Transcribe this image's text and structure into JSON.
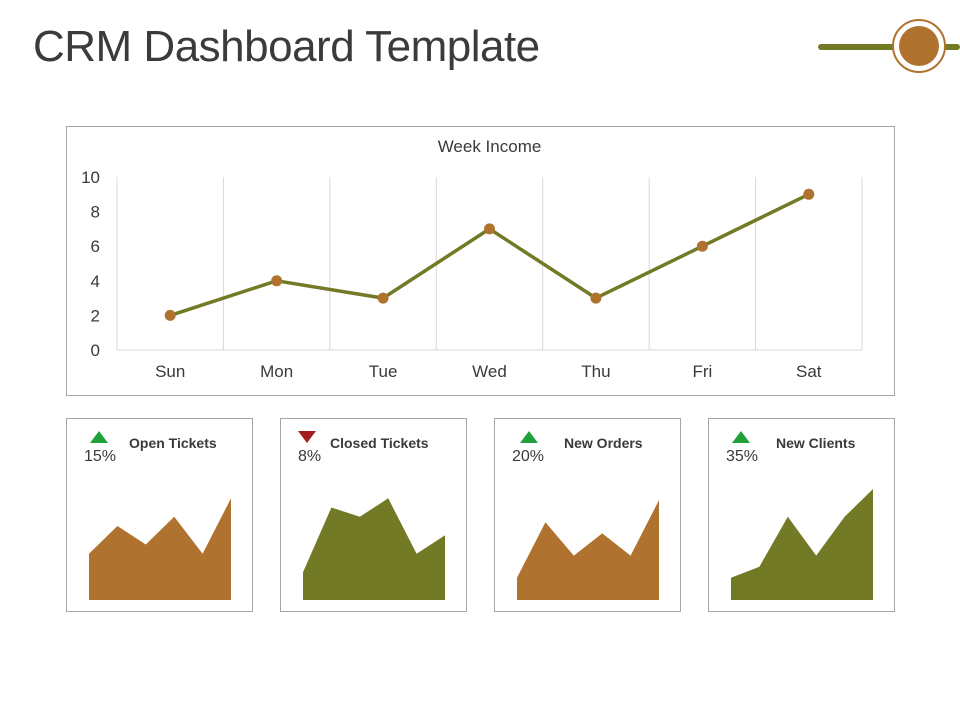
{
  "page": {
    "title": "CRM Dashboard Template"
  },
  "colors": {
    "olive": "#727a26",
    "copper": "#b0722f",
    "up": "#1fa03a",
    "down": "#a31f1f",
    "grid": "#d9d9d9",
    "text": "#3a3a3a"
  },
  "chart_data": [
    {
      "type": "line",
      "title": "Week Income",
      "categories": [
        "Sun",
        "Mon",
        "Tue",
        "Wed",
        "Thu",
        "Fri",
        "Sat"
      ],
      "values": [
        2,
        4,
        3,
        7,
        3,
        6,
        9
      ],
      "ylim": [
        0,
        10
      ],
      "yticks": [
        0,
        2,
        4,
        6,
        8,
        10
      ],
      "grid": "vertical",
      "line_color": "#727a26",
      "marker_color": "#b0722f"
    },
    {
      "type": "area",
      "title": "Open Tickets",
      "trend": "up",
      "percent": "15%",
      "values": [
        5,
        8,
        6,
        9,
        5,
        11
      ],
      "ylim": [
        0,
        12
      ],
      "color": "#b0722f"
    },
    {
      "type": "area",
      "title": "Closed Tickets",
      "trend": "down",
      "percent": "8%",
      "values": [
        3,
        10,
        9,
        11,
        5,
        7
      ],
      "ylim": [
        0,
        12
      ],
      "color": "#727a26"
    },
    {
      "type": "area",
      "title": "New Orders",
      "trend": "up",
      "percent": "20%",
      "values": [
        2,
        7,
        4,
        6,
        4,
        9
      ],
      "ylim": [
        0,
        10
      ],
      "color": "#b0722f"
    },
    {
      "type": "area",
      "title": "New Clients",
      "trend": "up",
      "percent": "35%",
      "values": [
        2,
        3,
        7.5,
        4,
        7.5,
        10
      ],
      "ylim": [
        0,
        10
      ],
      "color": "#727a26"
    }
  ]
}
